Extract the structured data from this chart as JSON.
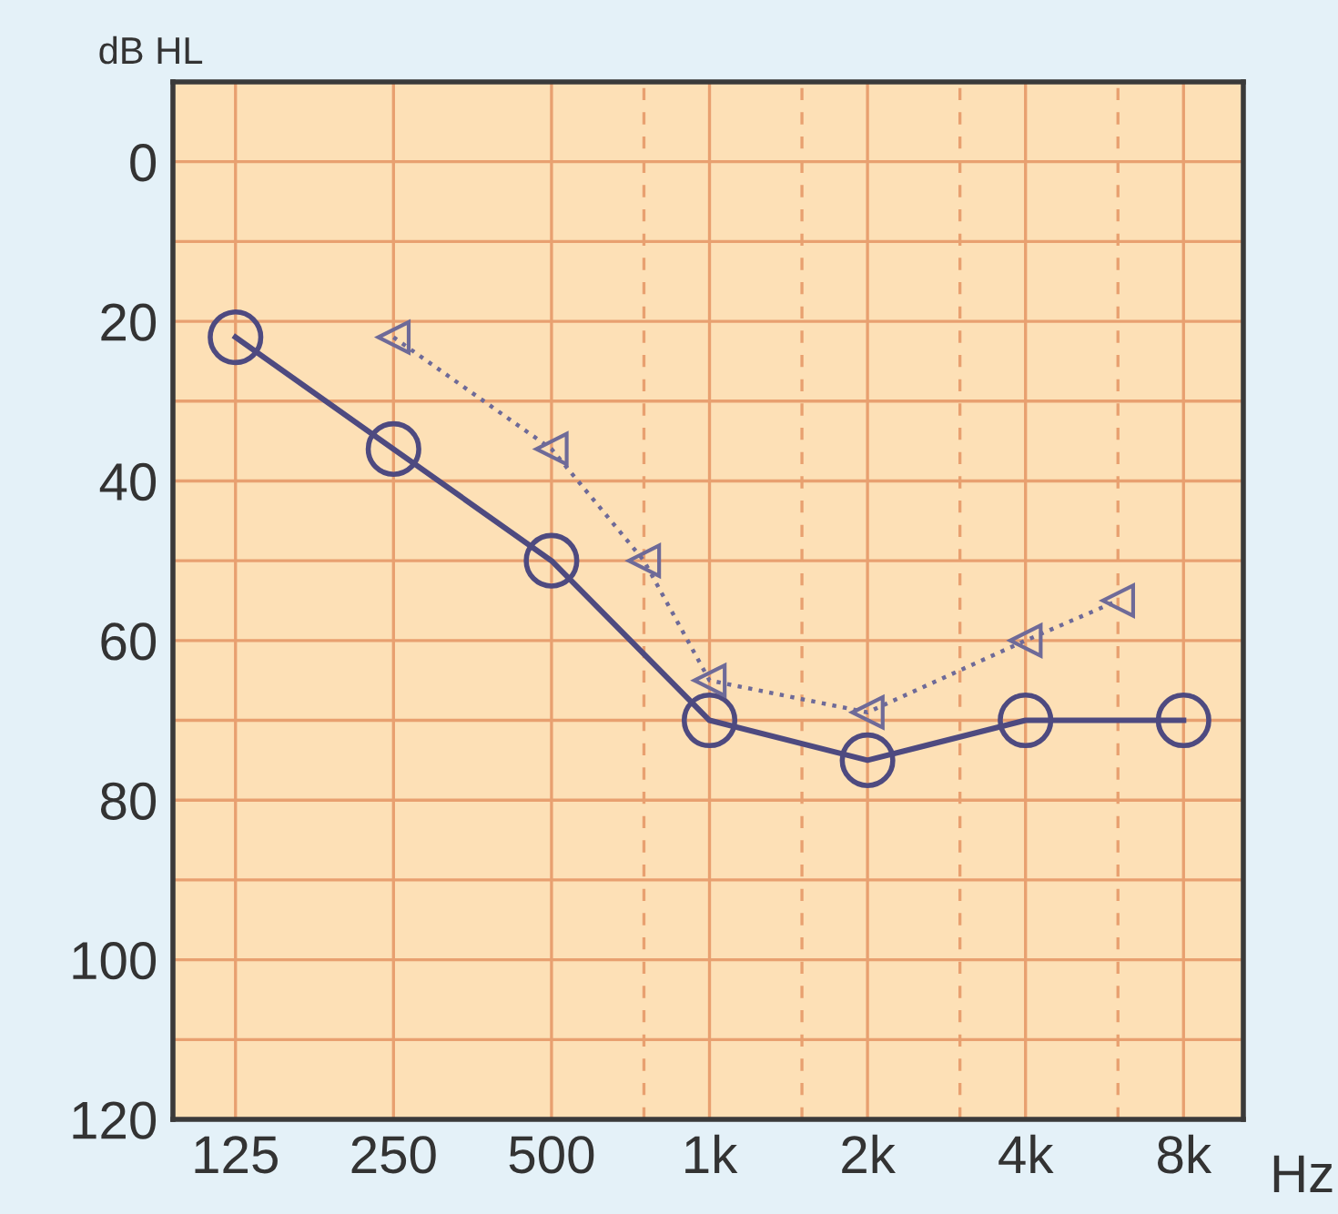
{
  "chart_data": {
    "type": "line",
    "xlabel": "Hz",
    "ylabel": "dB HL",
    "log": "x",
    "xlim": [
      95,
      10400
    ],
    "ylim": [
      120,
      -10
    ],
    "xticks": [
      125,
      250,
      500,
      {
        "value": 1000,
        "label": "1k"
      },
      {
        "value": 2000,
        "label": "2k"
      },
      {
        "value": 4000,
        "label": "4k"
      },
      {
        "value": 8000,
        "label": "8k"
      }
    ],
    "yticks": [
      0,
      {
        "value": 10,
        "label": null
      },
      20,
      {
        "value": 30,
        "label": null
      },
      40,
      {
        "value": 50,
        "label": null
      },
      60,
      {
        "value": 70,
        "label": null
      },
      80,
      {
        "value": 90,
        "label": null
      },
      100,
      {
        "value": 110,
        "label": null
      },
      120
    ],
    "grid": true,
    "ref_lines": [
      {
        "axis": "x",
        "value": 750,
        "label": null,
        "line_style": "dashed",
        "color": "#e8a070"
      },
      {
        "axis": "x",
        "value": 1500,
        "label": null,
        "line_style": "dashed",
        "color": "#e8a070"
      },
      {
        "axis": "x",
        "value": 3000,
        "label": null,
        "line_style": "dashed",
        "color": "#e8a070"
      },
      {
        "axis": "x",
        "value": 6000,
        "label": null,
        "line_style": "dashed",
        "color": "#e8a070"
      }
    ],
    "series": [
      {
        "color": "#4e4a80",
        "marker": "circle",
        "line_style": "solid",
        "x": [
          125,
          250,
          500,
          1000,
          2000,
          4000,
          8000
        ],
        "values": [
          22,
          36,
          50,
          70,
          75,
          70,
          70
        ]
      },
      {
        "color": "#6e6a98",
        "marker": "triangle",
        "line_style": "dotted",
        "x": [
          250,
          500,
          750,
          1000,
          2000,
          4000,
          6000
        ],
        "values": [
          22,
          36,
          50,
          65,
          69,
          60,
          55
        ]
      }
    ]
  }
}
